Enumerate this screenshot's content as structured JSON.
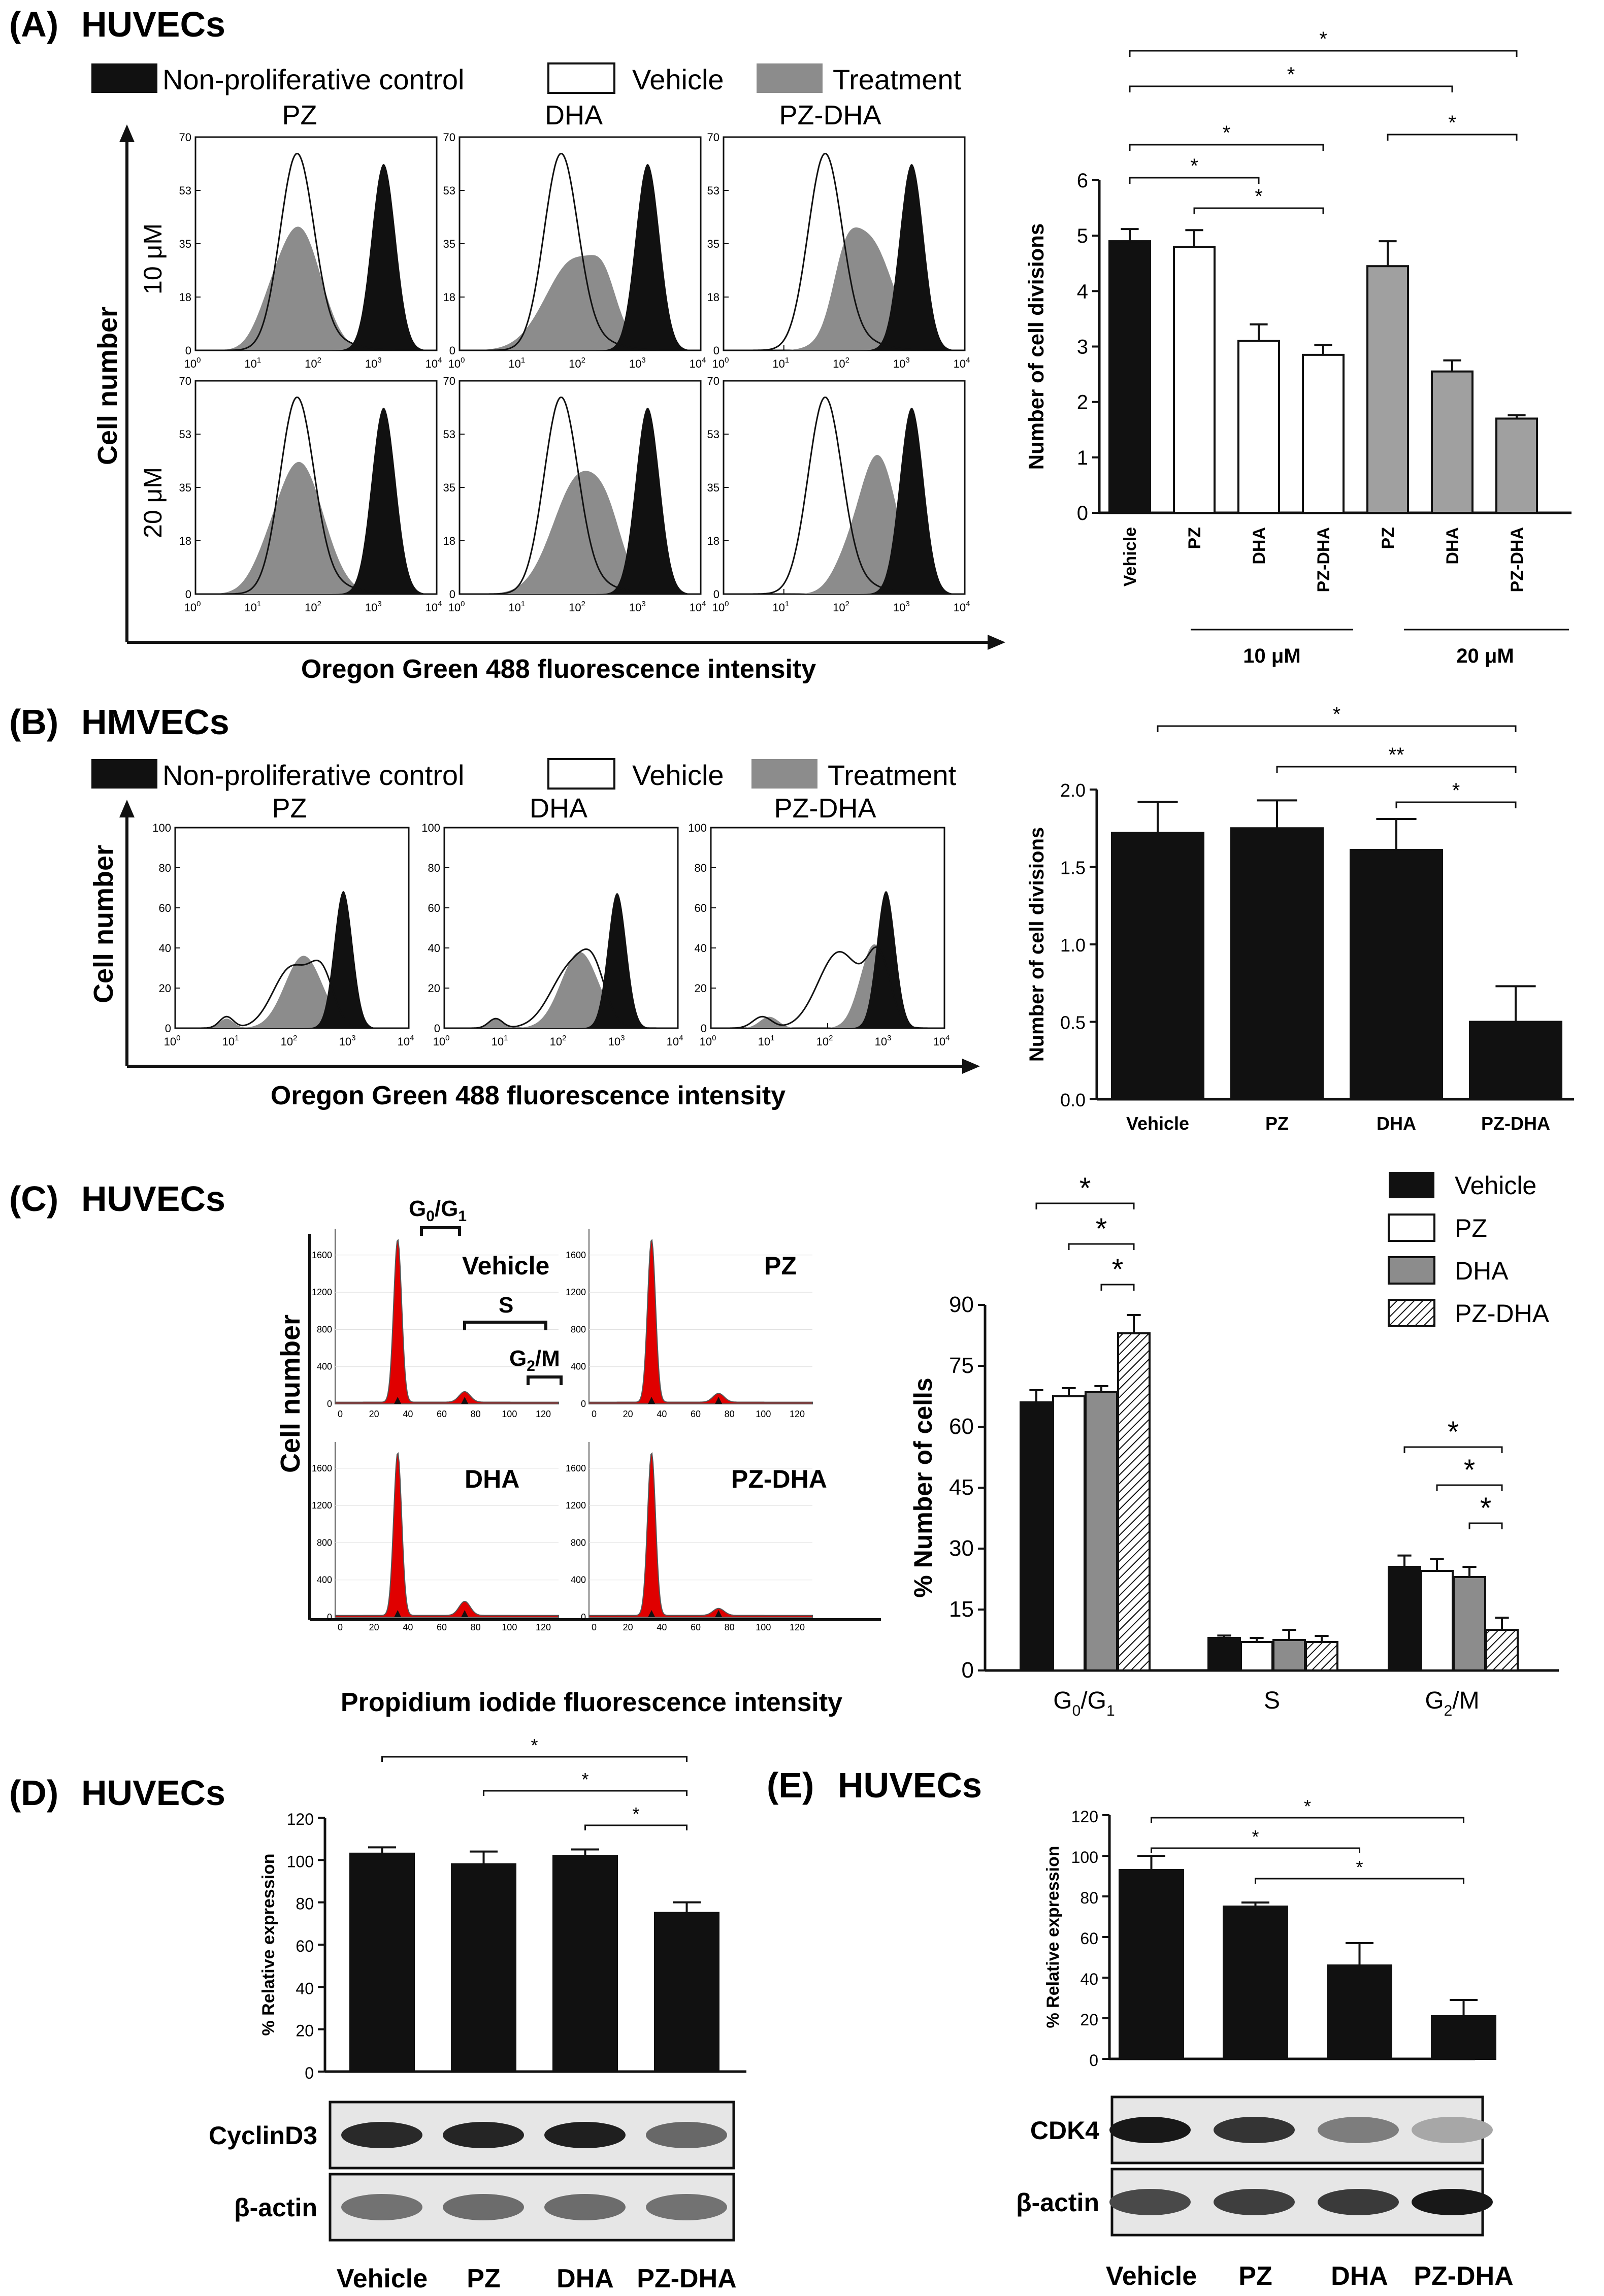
{
  "panels": {
    "A": {
      "tag": "(A)",
      "title": "HUVECs"
    },
    "B": {
      "tag": "(B)",
      "title": "HMVECs"
    },
    "C": {
      "tag": "(C)",
      "title": "HUVECs"
    },
    "D": {
      "tag": "(D)",
      "title": "HUVECs"
    },
    "E": {
      "tag": "(E)",
      "title": "HUVECs"
    }
  },
  "legend_flow": {
    "control": "Non-proliferative control",
    "vehicle": "Vehicle",
    "treatment": "Treatment"
  },
  "flow_common": {
    "ylabel": "Cell number",
    "xlabel": "Oregon Green 488 fluorescence intensity",
    "col_titles": [
      "PZ",
      "DHA",
      "PZ-DHA"
    ],
    "row_labels_A": [
      "10 μM",
      "20 μM"
    ],
    "x_ticks_exp": [
      "0",
      "1",
      "2",
      "3",
      "4"
    ],
    "x_tick_base": "10",
    "yticks_A": [
      "0",
      "18",
      "35",
      "53",
      "70"
    ],
    "yticks_B": [
      "0",
      "20",
      "40",
      "60",
      "80",
      "100"
    ]
  },
  "cellcycle": {
    "ylabel": "Cell number",
    "xlabel": "Propidium iodide fluorescence intensity",
    "subplot_labels": [
      "Vehicle",
      "PZ",
      "DHA",
      "PZ-DHA"
    ],
    "gate_g0g1": "G0/G1",
    "gate_s": "S",
    "gate_g2m": "G2/M",
    "yticks": [
      "0",
      "400",
      "800",
      "1200",
      "1600"
    ],
    "xticks": [
      "0",
      "20",
      "40",
      "60",
      "80",
      "100",
      "120"
    ]
  },
  "blots": {
    "D": {
      "rows": [
        "CyclinD3",
        "β-actin"
      ]
    },
    "E": {
      "rows": [
        "CDK4",
        "β-actin"
      ]
    }
  },
  "sig_star": "*",
  "sig_double": "**",
  "colors": {
    "black": "#111111",
    "gray": "#8c8c8c",
    "white": "#ffffff",
    "red": "#e00000"
  },
  "chart_data": [
    {
      "id": "A",
      "type": "bar",
      "ylabel": "Number of cell divisions",
      "categories": [
        "Vehicle",
        "PZ",
        "DHA",
        "PZ-DHA",
        "PZ",
        "DHA",
        "PZ-DHA"
      ],
      "values": [
        4.9,
        4.8,
        3.1,
        2.85,
        4.45,
        2.55,
        1.7
      ],
      "errors": [
        0.22,
        0.3,
        0.3,
        0.18,
        0.45,
        0.2,
        0.06
      ],
      "fills": [
        "#111111",
        "#ffffff",
        "#ffffff",
        "#ffffff",
        "#a0a0a0",
        "#a0a0a0",
        "#a0a0a0"
      ],
      "ylim": [
        0,
        6
      ],
      "yticks": [
        "0",
        "1",
        "2",
        "3",
        "4",
        "5",
        "6"
      ],
      "groups": [
        {
          "label": "10 μM"
        },
        {
          "label": "20 μM"
        }
      ]
    },
    {
      "id": "B",
      "type": "bar",
      "ylabel": "Number of cell divisions",
      "categories": [
        "Vehicle",
        "PZ",
        "DHA",
        "PZ-DHA"
      ],
      "values": [
        1.72,
        1.75,
        1.61,
        0.5
      ],
      "errors": [
        0.2,
        0.18,
        0.2,
        0.23
      ],
      "ylim": [
        0,
        2
      ],
      "yticks": [
        "0.0",
        "0.5",
        "1.0",
        "1.5",
        "2.0"
      ]
    },
    {
      "id": "C",
      "type": "bar",
      "ylabel": "% Number of cells",
      "categories": [
        "G0/G1",
        "S",
        "G2/M"
      ],
      "series": [
        {
          "name": "Vehicle",
          "values": [
            66,
            8,
            25.5
          ],
          "errors": [
            3,
            0.6,
            2.8
          ]
        },
        {
          "name": "PZ",
          "values": [
            67.5,
            7,
            24.5
          ],
          "errors": [
            2,
            1,
            3
          ]
        },
        {
          "name": "DHA",
          "values": [
            68.5,
            7.5,
            23
          ],
          "errors": [
            1.5,
            2.5,
            2.5
          ]
        },
        {
          "name": "PZ-DHA",
          "values": [
            83,
            7,
            10
          ],
          "errors": [
            4.5,
            1.5,
            3
          ]
        }
      ],
      "ylim": [
        0,
        90
      ],
      "yticks": [
        "0",
        "15",
        "30",
        "45",
        "60",
        "75",
        "90"
      ]
    },
    {
      "id": "D",
      "type": "bar",
      "ylabel": "% Relative expression",
      "categories": [
        "Vehicle",
        "PZ",
        "DHA",
        "PZ-DHA"
      ],
      "values": [
        103,
        98,
        102,
        75
      ],
      "errors": [
        3,
        6,
        3,
        5
      ],
      "ylim": [
        0,
        120
      ],
      "yticks": [
        "0",
        "20",
        "40",
        "60",
        "80",
        "100",
        "120"
      ]
    },
    {
      "id": "E",
      "type": "bar",
      "ylabel": "% Relative expression",
      "categories": [
        "Vehicle",
        "PZ",
        "DHA",
        "PZ-DHA"
      ],
      "values": [
        93,
        75,
        46,
        21
      ],
      "errors": [
        7,
        2,
        11,
        8
      ],
      "ylim": [
        0,
        120
      ],
      "yticks": [
        "0",
        "20",
        "40",
        "60",
        "80",
        "100",
        "120"
      ]
    }
  ]
}
